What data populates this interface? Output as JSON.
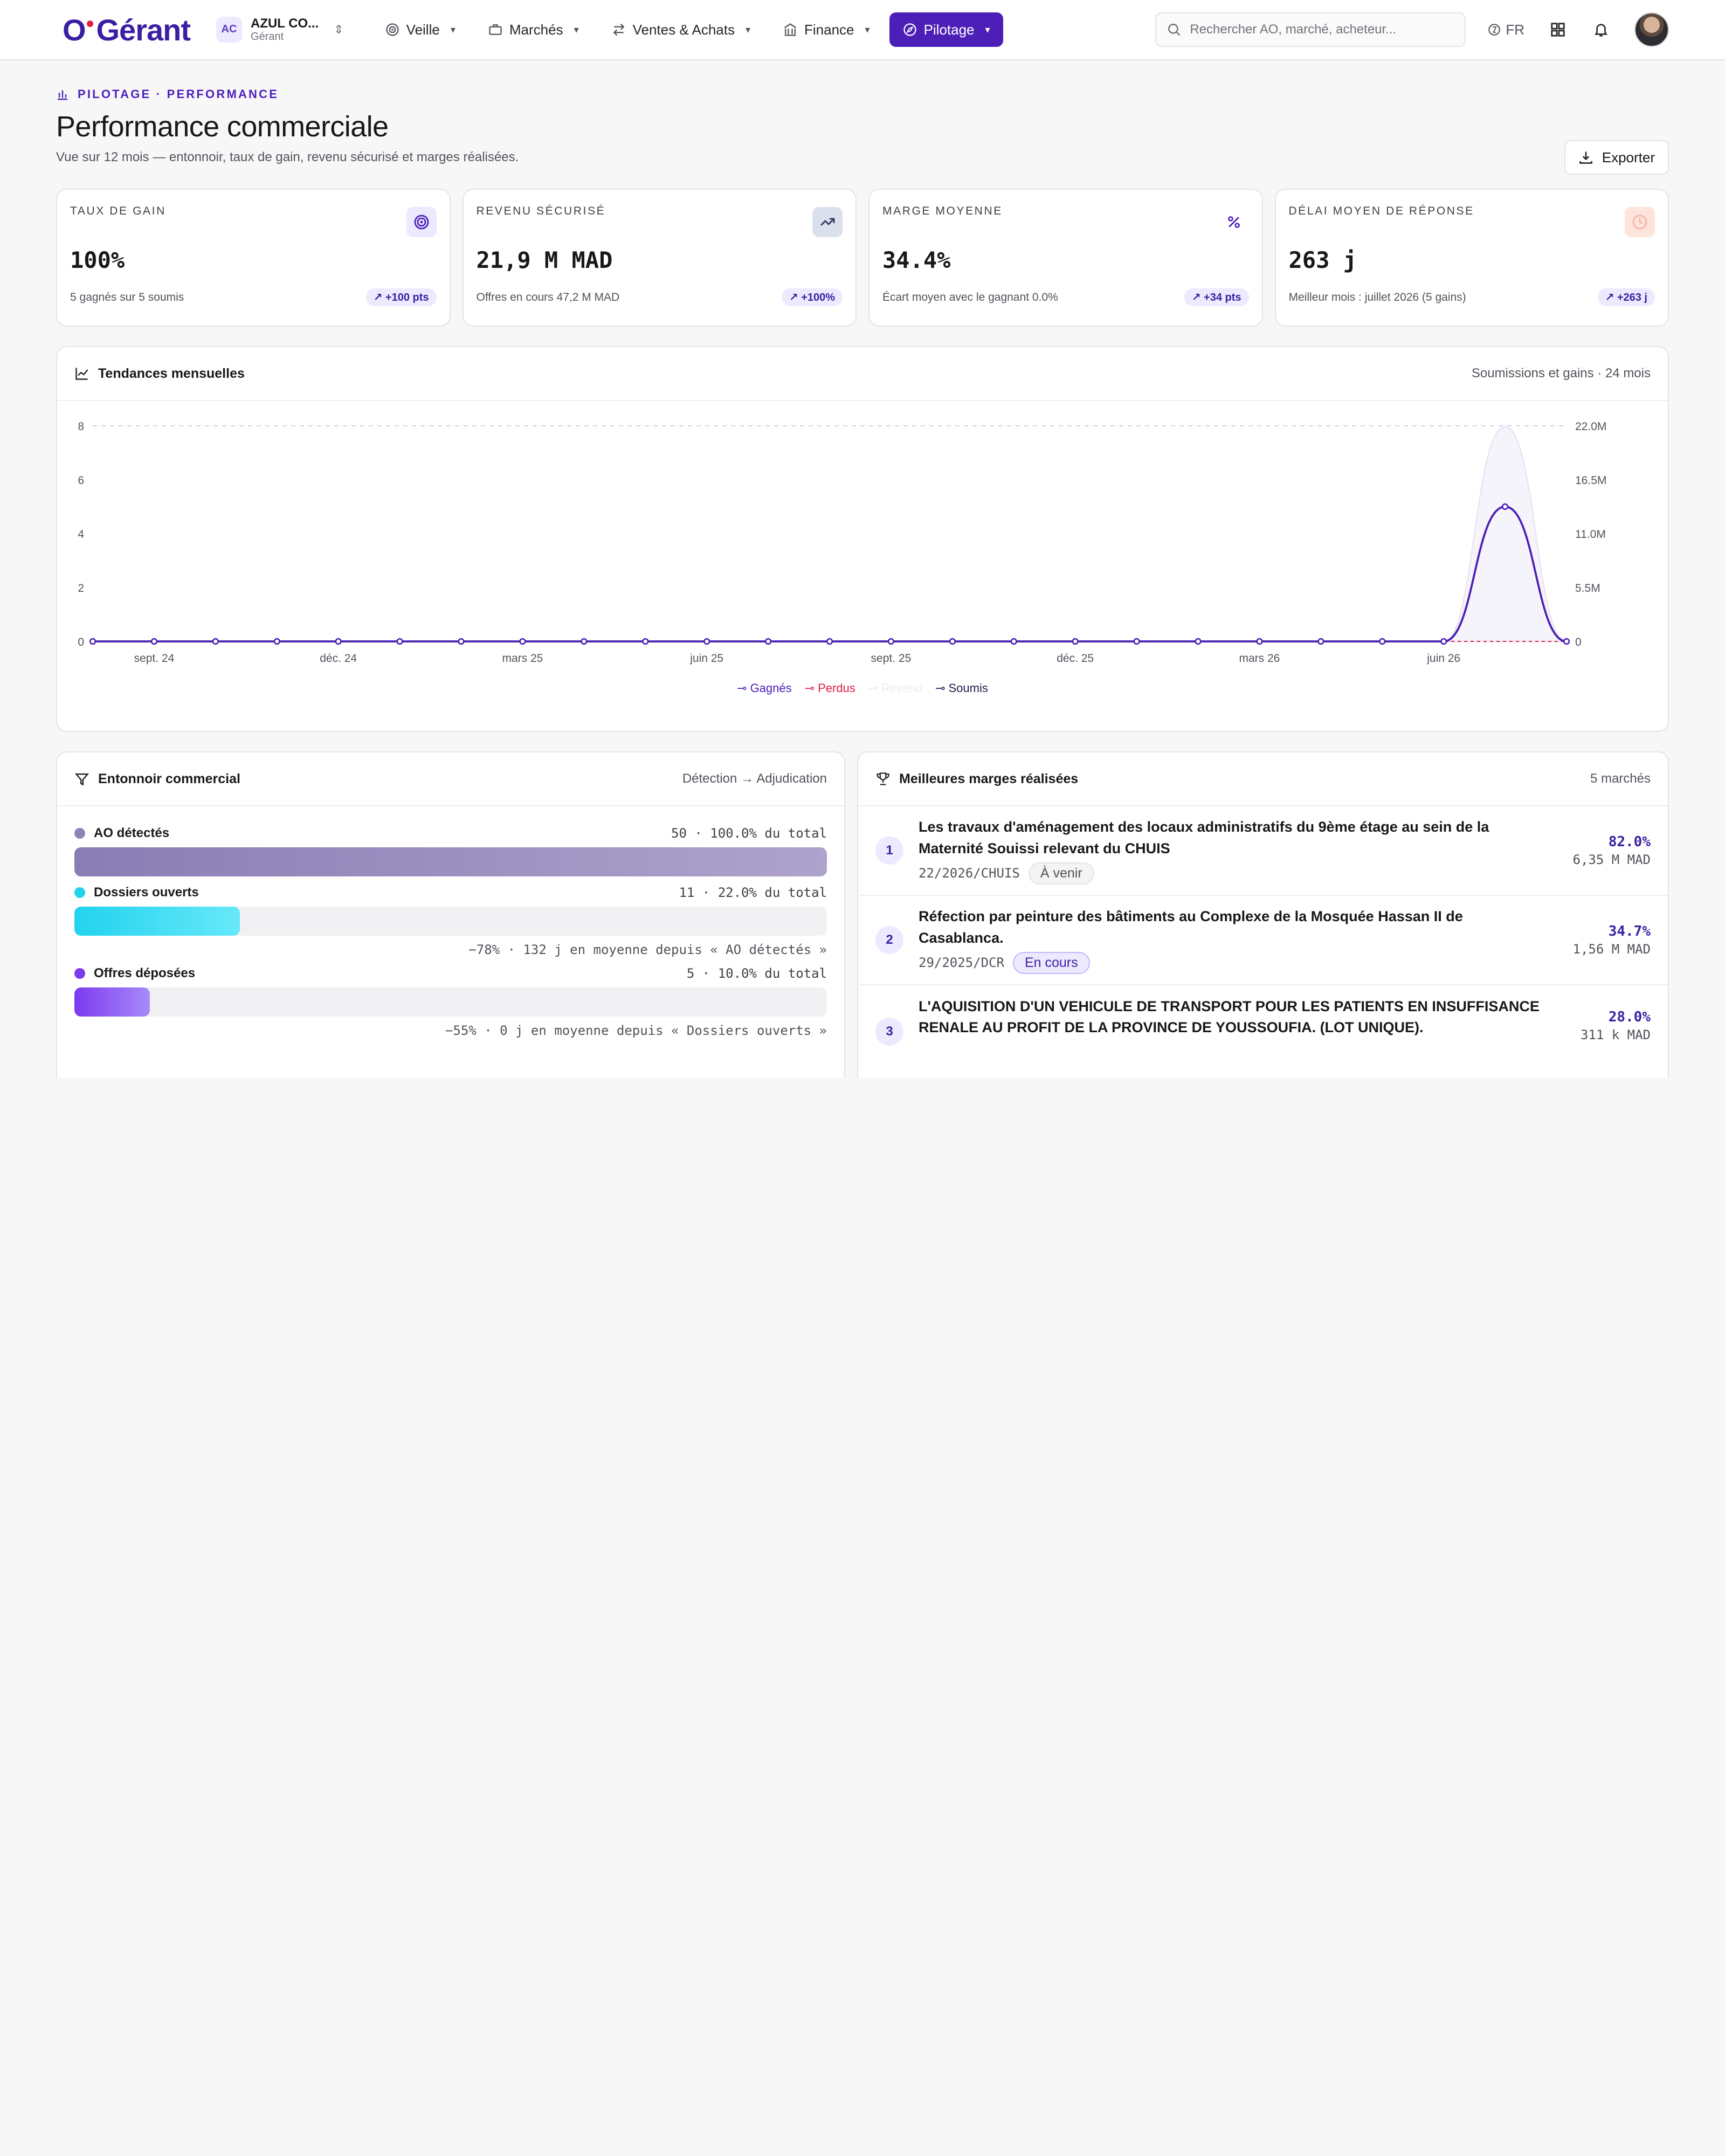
{
  "app": {
    "logo_o": "O",
    "logo_rest": "Gérant"
  },
  "org": {
    "initials": "AC",
    "name": "AZUL CO...",
    "role": "Gérant"
  },
  "nav": [
    {
      "label": "Veille",
      "icon": "radar-icon"
    },
    {
      "label": "Marchés",
      "icon": "briefcase-icon"
    },
    {
      "label": "Ventes & Achats",
      "icon": "arrows-exchange-icon"
    },
    {
      "label": "Finance",
      "icon": "bank-icon"
    },
    {
      "label": "Pilotage",
      "icon": "compass-icon",
      "active": true
    }
  ],
  "search": {
    "placeholder": "Rechercher AO, marché, acheteur..."
  },
  "lang": "FR",
  "header": {
    "eyebrow": "PILOTAGE · PERFORMANCE",
    "title": "Performance commerciale",
    "subtitle": "Vue sur 12 mois — entonnoir, taux de gain, revenu sécurisé et marges réalisées.",
    "export_label": "Exporter"
  },
  "kpis": [
    {
      "label": "TAUX DE GAIN",
      "value": "100%",
      "note": "5 gagnés sur 5 soumis",
      "delta": "↗ +100 pts",
      "icon": "target-icon",
      "icon_bg": "#ede9fe",
      "icon_color": "#4c1fb8"
    },
    {
      "label": "REVENU SÉCURISÉ",
      "value": "21,9 M MAD",
      "note": "Offres en cours 47,2 M MAD",
      "delta": "↗ +100%",
      "icon": "trending-up-icon",
      "icon_bg": "#dbe1ec",
      "icon_color": "#3f3f68"
    },
    {
      "label": "MARGE MOYENNE",
      "value": "34.4%",
      "note": "Écart moyen avec le gagnant 0.0%",
      "delta": "↗ +34 pts",
      "icon": "percent-icon",
      "icon_bg": "#ffffff",
      "icon_color": "#4c1fb8"
    },
    {
      "label": "DÉLAI MOYEN DE RÉPONSE",
      "value": "263 j",
      "note": "Meilleur mois : juillet 2026 (5 gains)",
      "delta": "↗ +263 j",
      "icon": "clock-icon",
      "icon_bg": "#fde4dc",
      "icon_color": "#f6b4a4"
    }
  ],
  "trend": {
    "title": "Tendances mensuelles",
    "meta": "Soumissions et gains · 24 mois"
  },
  "chart_data": {
    "type": "line",
    "x": [
      "août 24",
      "sept. 24",
      "oct. 24",
      "nov. 24",
      "déc. 24",
      "janv. 25",
      "févr. 25",
      "mars 25",
      "avr. 25",
      "mai 25",
      "juin 25",
      "juil. 25",
      "août 25",
      "sept. 25",
      "oct. 25",
      "nov. 25",
      "déc. 25",
      "janv. 26",
      "févr. 26",
      "mars 26",
      "avr. 26",
      "mai 26",
      "juin 26",
      "juil. 26",
      "août 26"
    ],
    "x_tick_labels": [
      "sept. 24",
      "déc. 24",
      "mars 25",
      "juin 25",
      "sept. 25",
      "déc. 25",
      "mars 26",
      "juin 26"
    ],
    "series": [
      {
        "name": "Gagnés",
        "axis": "left",
        "color": "#4c1fb8",
        "values": [
          0,
          0,
          0,
          0,
          0,
          0,
          0,
          0,
          0,
          0,
          0,
          0,
          0,
          0,
          0,
          0,
          0,
          0,
          0,
          0,
          0,
          0,
          0,
          5,
          0
        ]
      },
      {
        "name": "Perdus",
        "axis": "left",
        "color": "#e11d48",
        "values": [
          0,
          0,
          0,
          0,
          0,
          0,
          0,
          0,
          0,
          0,
          0,
          0,
          0,
          0,
          0,
          0,
          0,
          0,
          0,
          0,
          0,
          0,
          0,
          0,
          0
        ]
      },
      {
        "name": "Revenu",
        "axis": "right",
        "color": "#e7e5f3",
        "values": [
          0,
          0,
          0,
          0,
          0,
          0,
          0,
          0,
          0,
          0,
          0,
          0,
          0,
          0,
          0,
          0,
          0,
          0,
          0,
          0,
          0,
          0,
          0,
          21900000,
          0
        ]
      },
      {
        "name": "Soumis",
        "axis": "left",
        "color": "#1e1b4b",
        "values": [
          0,
          0,
          0,
          0,
          0,
          0,
          0,
          0,
          0,
          0,
          0,
          0,
          0,
          0,
          0,
          0,
          0,
          0,
          0,
          0,
          0,
          0,
          0,
          5,
          0
        ]
      }
    ],
    "y_left": {
      "ticks": [
        "0",
        "2",
        "4",
        "6",
        "8"
      ],
      "range": [
        0,
        8
      ]
    },
    "y_right": {
      "ticks": [
        "0",
        "5.5M",
        "11.0M",
        "16.5M",
        "22.0M"
      ],
      "range": [
        0,
        22000000
      ]
    },
    "grid": "top dashed line only",
    "legend": "bottom-center"
  },
  "funnel": {
    "title": "Entonnoir commercial",
    "meta": "Détection → Adjudication",
    "stages": [
      {
        "name": "AO détectés",
        "stat": "50 · 100.0% du total",
        "fraction": 1.0,
        "color": "#8e82b8",
        "gradient": "linear-gradient(90deg,#8a7db4,#aea3cc)",
        "delta": ""
      },
      {
        "name": "Dossiers ouverts",
        "stat": "11 · 22.0% du total",
        "fraction": 0.22,
        "color": "#22d3ee",
        "gradient": "linear-gradient(90deg,#22d3ee,#67e8f9)",
        "delta": "−78% · 132 j en moyenne depuis « AO détectés »"
      },
      {
        "name": "Offres déposées",
        "stat": "5 · 10.0% du total",
        "fraction": 0.1,
        "color": "#7c3aed",
        "gradient": "linear-gradient(90deg,#7c3aed,#a78bfa)",
        "delta": "−55% · 0 j en moyenne depuis « Dossiers ouverts »"
      }
    ]
  },
  "margins": {
    "title": "Meilleures marges réalisées",
    "meta": "5 marchés",
    "items": [
      {
        "rank": "1",
        "title": "Les travaux d'aménagement des locaux administratifs du 9ème étage au sein de la Maternité Souissi relevant du CHUIS",
        "ref": "22/2026/CHUIS",
        "status": "À venir",
        "status_style": "grey",
        "pct": "82.0%",
        "amount": "6,35 M MAD"
      },
      {
        "rank": "2",
        "title": "Réfection par peinture des bâtiments au Complexe de la Mosquée Hassan II de Casablanca.",
        "ref": "29/2025/DCR",
        "status": "En cours",
        "status_style": "blue",
        "pct": "34.7%",
        "amount": "1,56 M MAD"
      },
      {
        "rank": "3",
        "title": "L'AQUISITION D'UN VEHICULE DE TRANSPORT POUR LES PATIENTS EN INSUFFISANCE RENALE AU PROFIT DE LA PROVINCE DE YOUSSOUFIA. (LOT UNIQUE).",
        "ref": "",
        "status": "",
        "status_style": "grey",
        "pct": "28.0%",
        "amount": "311 k MAD"
      }
    ]
  }
}
